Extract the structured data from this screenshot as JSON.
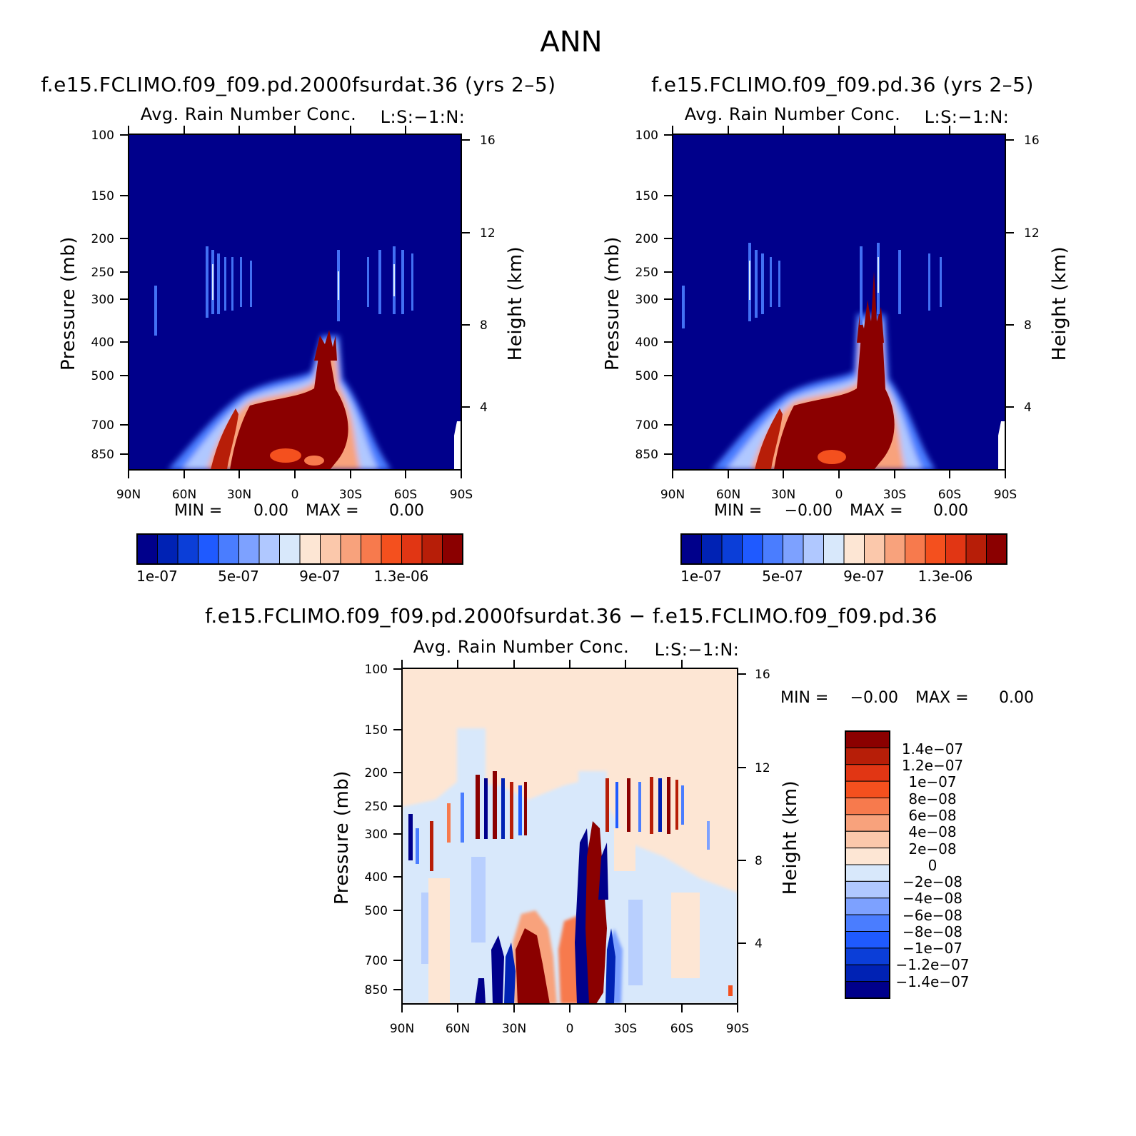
{
  "figure_title": "ANN",
  "colors": {
    "seq": [
      "#00008b",
      "#0022b4",
      "#0b3ed8",
      "#1f5aff",
      "#4a7dff",
      "#7da1ff",
      "#b0c8ff",
      "#d8e8fb",
      "#fde6d4",
      "#fbc8ab",
      "#f8a27c",
      "#f77a4d",
      "#f4501e",
      "#e13614",
      "#b71e08",
      "#8b0000"
    ],
    "div": [
      "#8b0000",
      "#b71e08",
      "#e13614",
      "#f4501e",
      "#f77a4d",
      "#f8a27c",
      "#fbc8ab",
      "#fde6d4",
      "#d8e8fb",
      "#b0c8ff",
      "#7da1ff",
      "#4a7dff",
      "#1f5aff",
      "#0b3ed8",
      "#0022b4",
      "#00008b"
    ]
  },
  "chart_data": [
    {
      "type": "heatmap",
      "case_title": "f.e15.FCLIMO.f09_f09.pd.2000fsurdat.36 (yrs 2–5)",
      "title": "Avg. Rain Number Conc.",
      "label_right": "L:S:−1:N:",
      "xlabel": "",
      "ylabel": "Pressure (mb)",
      "ylabel_right": "Height (km)",
      "x_ticks": [
        "90N",
        "60N",
        "30N",
        "0",
        "30S",
        "60S",
        "90S"
      ],
      "x_values": [
        90,
        60,
        30,
        0,
        -30,
        -60,
        -90
      ],
      "y_ticks": [
        "100",
        "150",
        "200",
        "250",
        "300",
        "400",
        "500",
        "700",
        "850"
      ],
      "y_values": [
        100,
        150,
        200,
        250,
        300,
        400,
        500,
        700,
        850
      ],
      "y_scale": "log",
      "ylim": [
        100,
        1000
      ],
      "height_ticks": [
        "16",
        "12",
        "8",
        "4"
      ],
      "height_values": [
        16,
        12,
        8,
        4
      ],
      "min_label": "MIN =",
      "min_value": "0.00",
      "max_label": "MAX =",
      "max_value": "0.00",
      "colorbar_labels": [
        "1e-07",
        "5e-07",
        "9e-07",
        "1.3e-06"
      ],
      "colorbar_levels": [
        1e-07,
        2e-07,
        3e-07,
        4e-07,
        5e-07,
        6e-07,
        7e-07,
        8e-07,
        9e-07,
        1e-06,
        1.1e-06,
        1.2e-06,
        1.3e-06,
        1.4e-06,
        1.5e-06
      ]
    },
    {
      "type": "heatmap",
      "case_title": "f.e15.FCLIMO.f09_f09.pd.36 (yrs 2–5)",
      "title": "Avg. Rain Number Conc.",
      "label_right": "L:S:−1:N:",
      "xlabel": "",
      "ylabel": "Pressure (mb)",
      "ylabel_right": "Height (km)",
      "x_ticks": [
        "90N",
        "60N",
        "30N",
        "0",
        "30S",
        "60S",
        "90S"
      ],
      "x_values": [
        90,
        60,
        30,
        0,
        -30,
        -60,
        -90
      ],
      "y_ticks": [
        "100",
        "150",
        "200",
        "250",
        "300",
        "400",
        "500",
        "700",
        "850"
      ],
      "y_values": [
        100,
        150,
        200,
        250,
        300,
        400,
        500,
        700,
        850
      ],
      "y_scale": "log",
      "ylim": [
        100,
        1000
      ],
      "height_ticks": [
        "16",
        "12",
        "8",
        "4"
      ],
      "height_values": [
        16,
        12,
        8,
        4
      ],
      "min_label": "MIN =",
      "min_value": "−0.00",
      "max_label": "MAX =",
      "max_value": "0.00",
      "colorbar_labels": [
        "1e-07",
        "5e-07",
        "9e-07",
        "1.3e-06"
      ],
      "colorbar_levels": [
        1e-07,
        2e-07,
        3e-07,
        4e-07,
        5e-07,
        6e-07,
        7e-07,
        8e-07,
        9e-07,
        1e-06,
        1.1e-06,
        1.2e-06,
        1.3e-06,
        1.4e-06,
        1.5e-06
      ]
    },
    {
      "type": "heatmap",
      "case_title": "f.e15.FCLIMO.f09_f09.pd.2000fsurdat.36 − f.e15.FCLIMO.f09_f09.pd.36",
      "title": "Avg. Rain Number Conc.",
      "label_right": "L:S:−1:N:",
      "xlabel": "",
      "ylabel": "Pressure (mb)",
      "ylabel_right": "Height (km)",
      "x_ticks": [
        "90N",
        "60N",
        "30N",
        "0",
        "30S",
        "60S",
        "90S"
      ],
      "x_values": [
        90,
        60,
        30,
        0,
        -30,
        -60,
        -90
      ],
      "y_ticks": [
        "100",
        "150",
        "200",
        "250",
        "300",
        "400",
        "500",
        "700",
        "850"
      ],
      "y_values": [
        100,
        150,
        200,
        250,
        300,
        400,
        500,
        700,
        850
      ],
      "y_scale": "log",
      "ylim": [
        100,
        1000
      ],
      "height_ticks": [
        "16",
        "12",
        "8",
        "4"
      ],
      "height_values": [
        16,
        12,
        8,
        4
      ],
      "min_label": "MIN =",
      "min_value": "−0.00",
      "max_label": "MAX =",
      "max_value": "0.00",
      "colorbar_labels": [
        "1.4e−07",
        "1.2e−07",
        "1e−07",
        "8e−08",
        "6e−08",
        "4e−08",
        "2e−08",
        "0",
        "−2e−08",
        "−4e−08",
        "−6e−08",
        "−8e−08",
        "−1e−07",
        "−1.2e−07",
        "−1.4e−07"
      ],
      "colorbar_levels": [
        1.4e-07,
        1.2e-07,
        1e-07,
        8e-08,
        6e-08,
        4e-08,
        2e-08,
        0,
        -2e-08,
        -4e-08,
        -6e-08,
        -8e-08,
        -1e-07,
        -1.2e-07,
        -1.4e-07
      ]
    }
  ]
}
